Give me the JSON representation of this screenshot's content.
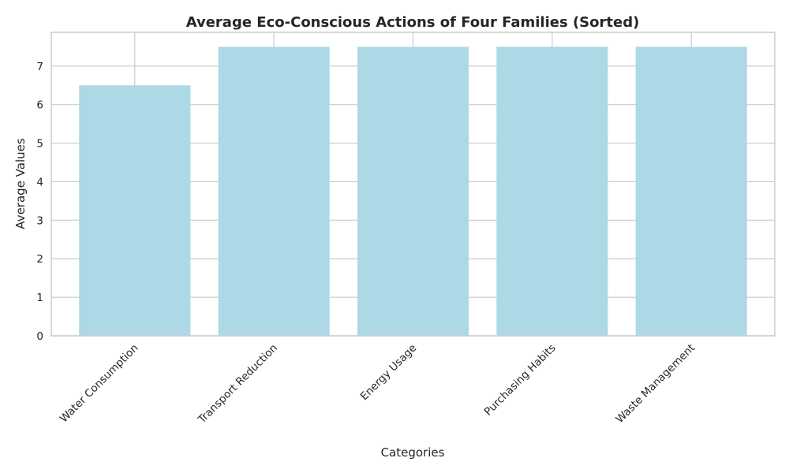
{
  "chart_data": {
    "type": "bar",
    "title": "Average Eco-Conscious Actions of Four Families (Sorted)",
    "xlabel": "Categories",
    "ylabel": "Average Values",
    "categories": [
      "Water Consumption",
      "Transport Reduction",
      "Energy Usage",
      "Purchasing Habits",
      "Waste Management"
    ],
    "values": [
      6.5,
      7.5,
      7.5,
      7.5,
      7.5
    ],
    "ylim": [
      0,
      7.875
    ],
    "yticks": [
      0,
      1,
      2,
      3,
      4,
      5,
      6,
      7
    ],
    "grid": true,
    "bar_color": "#add8e6"
  }
}
